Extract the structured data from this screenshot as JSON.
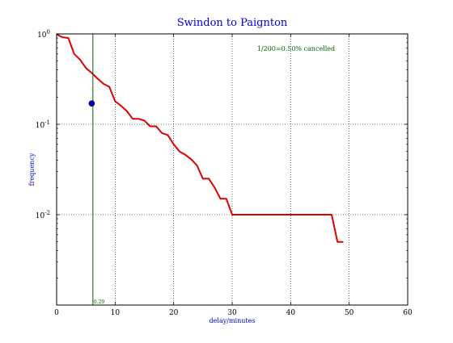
{
  "chart_data": {
    "type": "line",
    "title": "Swindon to Paignton",
    "xlabel": "delay/minutes",
    "ylabel": "frequency",
    "xlim": [
      0,
      60
    ],
    "ylim": [
      0.001,
      1.0
    ],
    "yscale": "log",
    "grid": true,
    "x_ticks": [
      0,
      10,
      20,
      30,
      40,
      50,
      60
    ],
    "y_ticks": [
      {
        "value": 1.0,
        "base": "10",
        "exp": "0"
      },
      {
        "value": 0.1,
        "base": "10",
        "exp": "-1"
      },
      {
        "value": 0.01,
        "base": "10",
        "exp": "-2"
      }
    ],
    "annotation": "1/200=0.50% cancelled",
    "colors": {
      "title": "#0000cc",
      "labels": "#0000cc",
      "series": "#dd0000",
      "marker_line": "#006600",
      "marker_point": "#0000cc",
      "grid": "#000000"
    },
    "series": [
      {
        "x": [
          0,
          0.5,
          1,
          2,
          3,
          4,
          5,
          6,
          7,
          8,
          9,
          10,
          11,
          12,
          13,
          14,
          15,
          16,
          17,
          18,
          19,
          20,
          21,
          22,
          23,
          24,
          25,
          26,
          27,
          28,
          29,
          30,
          31,
          35,
          40,
          45,
          47,
          48,
          49
        ],
        "y": [
          1.0,
          0.95,
          0.92,
          0.9,
          0.6,
          0.52,
          0.42,
          0.37,
          0.32,
          0.28,
          0.26,
          0.18,
          0.16,
          0.14,
          0.115,
          0.115,
          0.11,
          0.095,
          0.095,
          0.08,
          0.076,
          0.06,
          0.05,
          0.046,
          0.041,
          0.035,
          0.025,
          0.025,
          0.02,
          0.015,
          0.015,
          0.01,
          0.01,
          0.01,
          0.01,
          0.01,
          0.01,
          0.005,
          0.005
        ]
      }
    ],
    "marker_line": {
      "x": 6.2,
      "label": "0.29"
    },
    "marker_point": {
      "x": 6.0,
      "y": 0.17
    }
  }
}
